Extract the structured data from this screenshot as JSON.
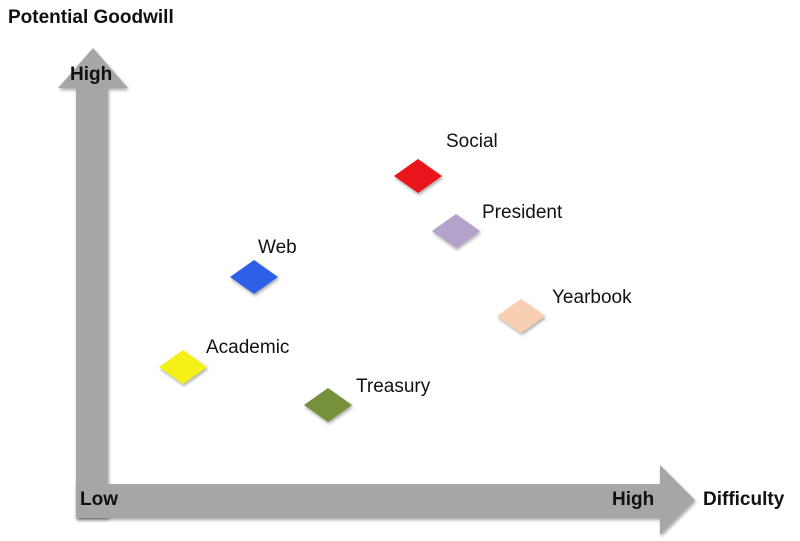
{
  "axes": {
    "y_title": "Potential Goodwill",
    "y_high": "High",
    "x_low": "Low",
    "x_high": "High",
    "x_title": "Difficulty"
  },
  "nodes": [
    {
      "label": "Social",
      "color": "#e8141a"
    },
    {
      "label": "President",
      "color": "#b3a2c9"
    },
    {
      "label": "Web",
      "color": "#2f5fe8"
    },
    {
      "label": "Yearbook",
      "color": "#f8cfb0"
    },
    {
      "label": "Academic",
      "color": "#f5f019"
    },
    {
      "label": "Treasury",
      "color": "#76903a"
    }
  ]
}
